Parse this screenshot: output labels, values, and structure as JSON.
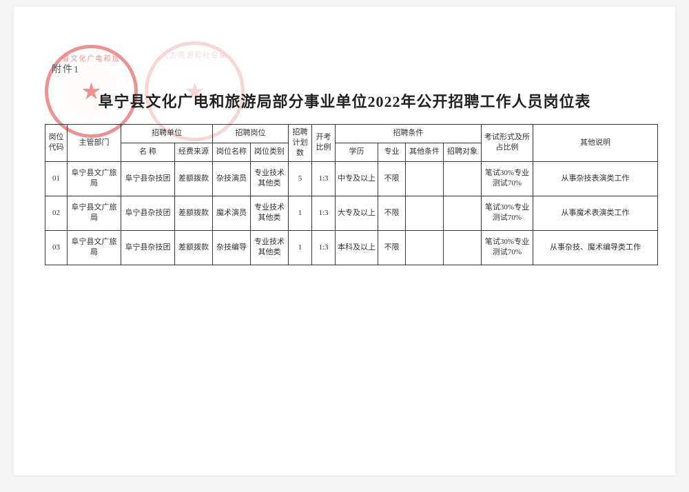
{
  "attachment_label": "附件1",
  "title": "阜宁县文化广电和旅游局部分事业单位2022年公开招聘工作人员岗位表",
  "stamp1_text": "县文化广电和旅",
  "stamp2_text": "人力资源和社会保",
  "header": {
    "code": "岗位代码",
    "dept": "主管部门",
    "unit_group": "招聘单位",
    "unit_name": "名 称",
    "unit_fund": "经费来源",
    "pos_group": "招聘岗位",
    "pos_name": "岗位名称",
    "pos_cat": "岗位类别",
    "plan": "招聘计划数",
    "ratio": "开考比例",
    "cond_group": "招聘条件",
    "edu": "学历",
    "major": "专业",
    "other_cond": "其他条件",
    "target": "招聘对象",
    "exam": "考试形式及所占比例",
    "note": "其他说明"
  },
  "rows": [
    {
      "code": "01",
      "dept": "阜宁县文广旅局",
      "unit_name": "阜宁县杂技团",
      "unit_fund": "差额拨款",
      "pos_name": "杂技演员",
      "pos_cat": "专业技术其他类",
      "plan": "5",
      "ratio": "1:3",
      "edu": "中专及以上",
      "major": "不限",
      "other_cond": "",
      "target": "",
      "exam": "笔试30%专业测试70%",
      "note": "从事杂技表演类工作"
    },
    {
      "code": "02",
      "dept": "阜宁县文广旅局",
      "unit_name": "阜宁县杂技团",
      "unit_fund": "差额拨款",
      "pos_name": "魔术演员",
      "pos_cat": "专业技术其他类",
      "plan": "1",
      "ratio": "1:3",
      "edu": "大专及以上",
      "major": "不限",
      "other_cond": "",
      "target": "",
      "exam": "笔试30%专业测试70%",
      "note": "从事魔术表演类工作"
    },
    {
      "code": "03",
      "dept": "阜宁县文广旅局",
      "unit_name": "阜宁县杂技团",
      "unit_fund": "差额拨款",
      "pos_name": "杂技编导",
      "pos_cat": "专业技术其他类",
      "plan": "1",
      "ratio": "1:3",
      "edu": "本科及以上",
      "major": "不限",
      "other_cond": "",
      "target": "",
      "exam": "笔试30%专业测试70%",
      "note": "从事杂技、魔术编导类工作"
    }
  ]
}
